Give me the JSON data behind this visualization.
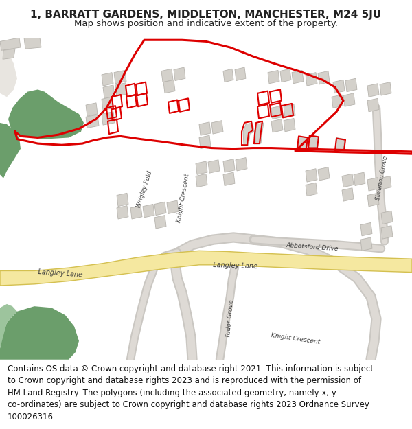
{
  "title_line1": "1, BARRATT GARDENS, MIDDLETON, MANCHESTER, M24 5JU",
  "title_line2": "Map shows position and indicative extent of the property.",
  "footer_text": "Contains OS data © Crown copyright and database right 2021. This information is subject\nto Crown copyright and database rights 2023 and is reproduced with the permission of\nHM Land Registry. The polygons (including the associated geometry, namely x, y\nco-ordinates) are subject to Crown copyright and database rights 2023 Ordnance Survey\n100026316.",
  "map_bg": "#efefeb",
  "road_yellow_fill": "#f5e8a0",
  "road_yellow_edge": "#d4c050",
  "green_dark": "#6b9e6b",
  "green_light": "#9dc49d",
  "building_color": "#d4d1cb",
  "building_edge": "#b8b5af",
  "red_line": "#dd0000",
  "white_bg": "#ffffff",
  "text_color": "#222222",
  "footer_fontsize": 8.5,
  "title_fontsize": 11,
  "subtitle_fontsize": 9.5
}
